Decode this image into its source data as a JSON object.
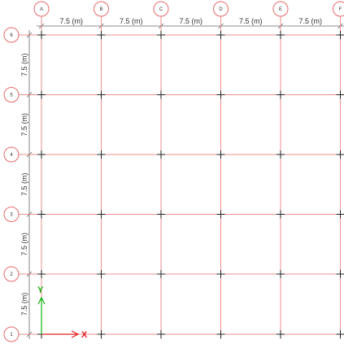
{
  "grid": {
    "column_labels": [
      "A",
      "B",
      "C",
      "D",
      "E",
      "F"
    ],
    "row_labels": [
      "6",
      "5",
      "4",
      "3",
      "2",
      "1"
    ],
    "column_spacing_label": "7.5 (m)",
    "row_spacing_label": "7.5 (m)",
    "column_span_count": 5,
    "row_span_count": 5
  },
  "axes": {
    "x_label": "X",
    "y_label": "Y",
    "x_color": "#e02020",
    "y_color": "#12b312"
  },
  "colors": {
    "grid_line": "#ee8f8f",
    "bubble_stroke": "#e86a6a",
    "node_mark": "#222222"
  }
}
